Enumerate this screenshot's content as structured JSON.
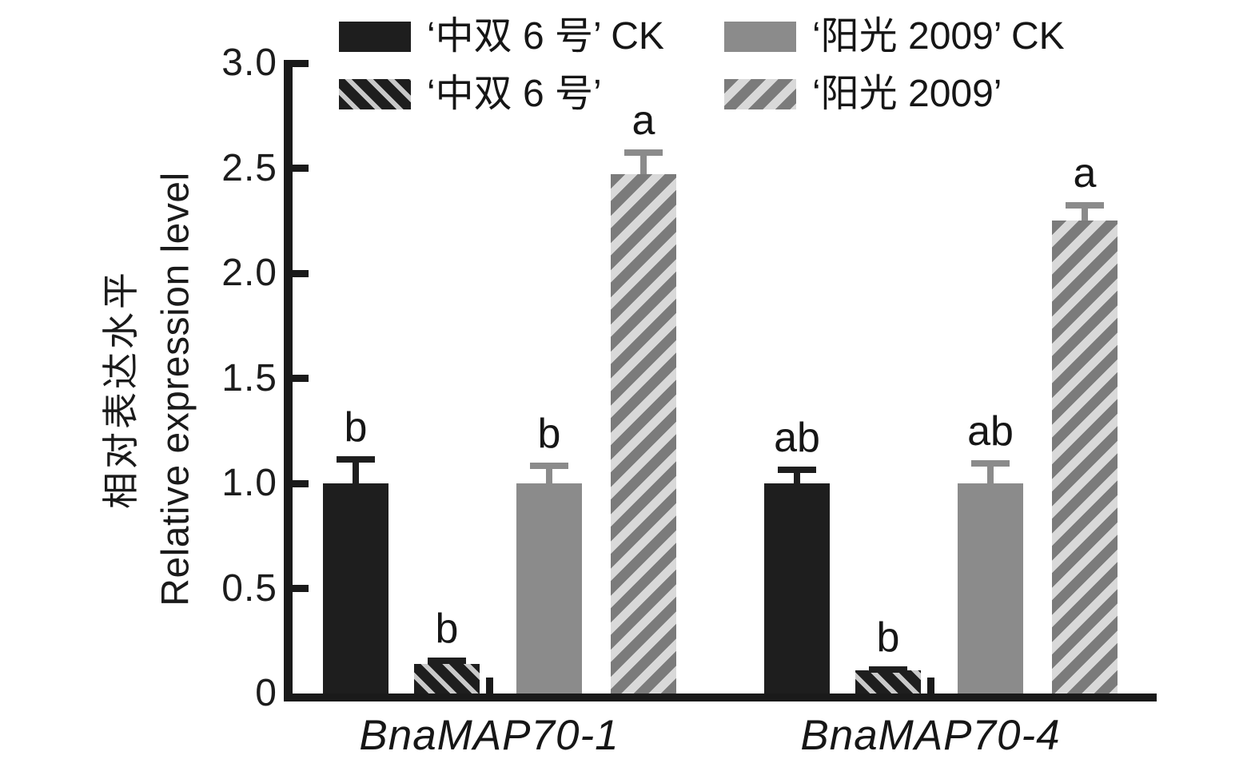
{
  "chart_data": {
    "type": "bar",
    "title": "",
    "ylabel_zh": "相对表达水平",
    "ylabel_en": "Relative expression level",
    "xlabel": "",
    "ylim": [
      0,
      3.0
    ],
    "yticks": [
      0,
      0.5,
      1.0,
      1.5,
      2.0,
      2.5,
      3.0
    ],
    "ytick_labels": [
      "0",
      "0.5",
      "1.0",
      "1.5",
      "2.0",
      "2.5",
      "3.0"
    ],
    "categories": [
      "BnaMAP70-1",
      "BnaMAP70-4"
    ],
    "grid": false,
    "legend_position": "top",
    "error_bars": true,
    "series": [
      {
        "name": "‘中双 6 号’ CK",
        "pattern": "black-solid",
        "values": [
          1.0,
          1.0
        ],
        "errors": [
          0.13,
          0.08
        ],
        "sig_letters": [
          "b",
          "ab"
        ]
      },
      {
        "name": "‘中双 6 号’",
        "pattern": "black-hatched",
        "values": [
          0.14,
          0.11
        ],
        "errors": [
          0.03,
          0.02
        ],
        "sig_letters": [
          "b",
          "b"
        ]
      },
      {
        "name": "‘阳光 2009’ CK",
        "pattern": "gray-solid",
        "values": [
          1.0,
          1.0
        ],
        "errors": [
          0.1,
          0.11
        ],
        "sig_letters": [
          "b",
          "ab"
        ]
      },
      {
        "name": "‘阳光 2009’",
        "pattern": "gray-hatched",
        "values": [
          2.47,
          2.25
        ],
        "errors": [
          0.12,
          0.09
        ],
        "sig_letters": [
          "a",
          "a"
        ]
      }
    ],
    "colors": {
      "black": "#1e1e1e",
      "gray": "#8b8b8b",
      "gray_hatch_bg": "#7b7b7b",
      "hatch_light_on_black": "#c9c9c9",
      "hatch_light_on_gray": "#d9d9d9",
      "axis": "#1a1a1a"
    }
  }
}
